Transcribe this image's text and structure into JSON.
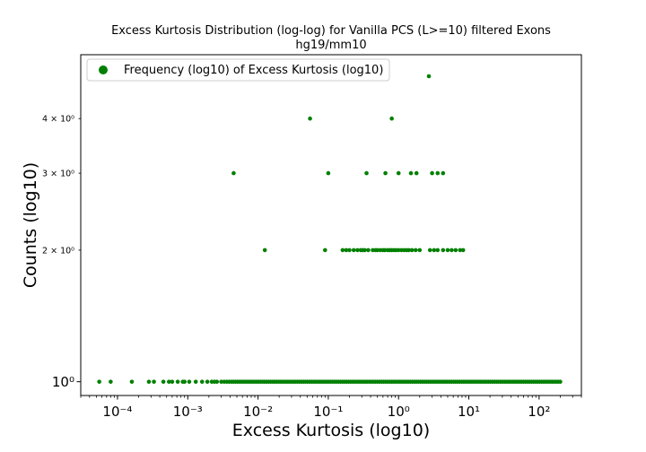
{
  "chart_data": {
    "type": "scatter",
    "title_line1": "Excess Kurtosis Distribution (log-log) for Vanilla PCS (L>=10) filtered Exons",
    "title_line2": "hg19/mm10",
    "xlabel": "Excess Kurtosis (log10)",
    "ylabel": "Counts (log10)",
    "x_scale": "log",
    "y_scale": "log",
    "xlim": [
      3e-05,
      400
    ],
    "ylim": [
      0.93,
      5.6
    ],
    "grid": false,
    "legend_position": "top-left",
    "color": "#008000",
    "series": [
      {
        "name": "Frequency (log10) of Excess Kurtosis (log10)",
        "marker": "circle",
        "y5": [
          2.7
        ],
        "y4": [
          0.055,
          0.8
        ],
        "y3": [
          0.0045,
          0.1,
          0.35,
          0.65,
          1.0,
          1.5,
          1.8,
          3.0,
          3.6,
          4.3
        ],
        "y2": [
          0.0125,
          0.09,
          0.16,
          0.18,
          0.2,
          0.23,
          0.26,
          0.29,
          0.31,
          0.33,
          0.37,
          0.43,
          0.47,
          0.5,
          0.55,
          0.6,
          0.64,
          0.7,
          0.75,
          0.8,
          0.86,
          0.92,
          1.0,
          1.1,
          1.2,
          1.3,
          1.4,
          1.55,
          1.75,
          2.0,
          2.8,
          3.2,
          3.6,
          4.3,
          5.0,
          5.7,
          6.5,
          7.5,
          8.3
        ],
        "y1_range": [
          5.5e-05,
          200
        ],
        "y1_sparse": [
          5.5e-05,
          8e-05,
          0.00016,
          0.00028,
          0.00033,
          0.00045,
          0.00054,
          0.0006,
          0.00072,
          0.00085,
          0.0009,
          0.00105,
          0.0013,
          0.0016,
          0.0019,
          0.0022,
          0.0024,
          0.0026,
          0.003,
          0.0033,
          0.0036,
          0.0039,
          0.0042
        ]
      }
    ],
    "x_ticks": [
      {
        "v": 0.0001,
        "label": "10⁻⁴"
      },
      {
        "v": 0.001,
        "label": "10⁻³"
      },
      {
        "v": 0.01,
        "label": "10⁻²"
      },
      {
        "v": 0.1,
        "label": "10⁻¹"
      },
      {
        "v": 1,
        "label": "10⁰"
      },
      {
        "v": 10,
        "label": "10¹"
      },
      {
        "v": 100,
        "label": "10²"
      }
    ],
    "y_ticks": [
      {
        "v": 1,
        "label": "10⁰",
        "major": true
      },
      {
        "v": 2,
        "label": "2 × 10⁰",
        "major": false
      },
      {
        "v": 3,
        "label": "3 × 10⁰",
        "major": false
      },
      {
        "v": 4,
        "label": "4 × 10⁰",
        "major": false
      }
    ]
  }
}
